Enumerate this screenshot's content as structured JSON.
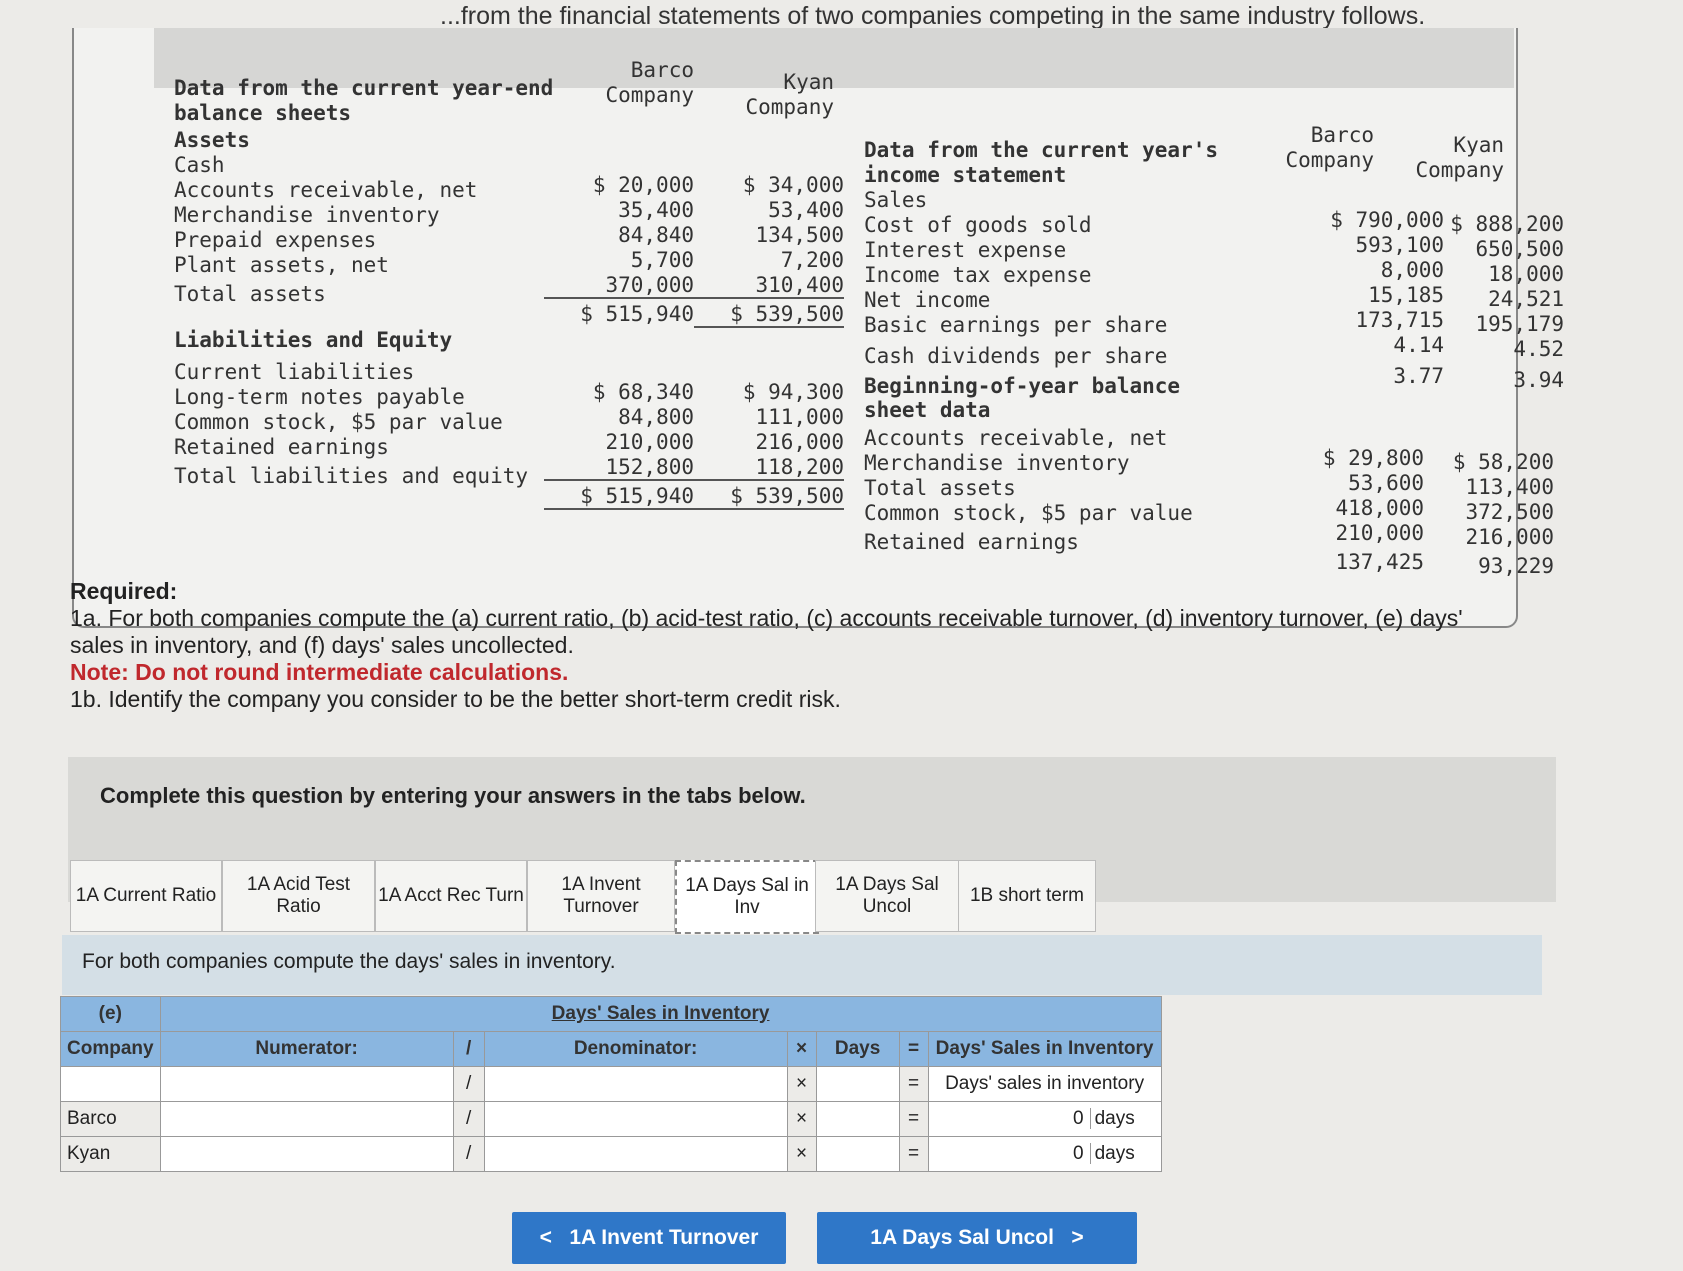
{
  "intro": "...from the financial statements of two companies competing in the same industry follows.",
  "balance": {
    "title": "Data from the current year-end balance sheets",
    "col_barco": "Barco Company",
    "col_kyan": "Kyan Company",
    "assets_label": "Assets",
    "assets": [
      {
        "label": "Cash",
        "barco": "$ 20,000",
        "kyan": "$ 34,000"
      },
      {
        "label": "Accounts receivable, net",
        "barco": "35,400",
        "kyan": "53,400"
      },
      {
        "label": "Merchandise inventory",
        "barco": "84,840",
        "kyan": "134,500"
      },
      {
        "label": "Prepaid expenses",
        "barco": "5,700",
        "kyan": "7,200"
      },
      {
        "label": "Plant assets, net",
        "barco": "370,000",
        "kyan": "310,400"
      },
      {
        "label": "Total assets",
        "barco": "$ 515,940",
        "kyan": "$ 539,500"
      }
    ],
    "liab_label": "Liabilities and Equity",
    "liabilities": [
      {
        "label": "Current liabilities",
        "barco": "$ 68,340",
        "kyan": "$ 94,300"
      },
      {
        "label": "Long-term notes payable",
        "barco": "84,800",
        "kyan": "111,000"
      },
      {
        "label": "Common stock, $5 par value",
        "barco": "210,000",
        "kyan": "216,000"
      },
      {
        "label": "Retained earnings",
        "barco": "152,800",
        "kyan": "118,200"
      },
      {
        "label": "Total liabilities and equity",
        "barco": "$ 515,940",
        "kyan": "$ 539,500"
      }
    ]
  },
  "income": {
    "title": "Data from the current year's income statement",
    "col_barco": "Barco Company",
    "col_kyan": "Kyan Company",
    "items": [
      {
        "label": "Sales",
        "barco": "$ 790,000",
        "kyan": "$ 888,200"
      },
      {
        "label": "Cost of goods sold",
        "barco": "593,100",
        "kyan": "650,500"
      },
      {
        "label": "Interest expense",
        "barco": "8,000",
        "kyan": "18,000"
      },
      {
        "label": "Income tax expense",
        "barco": "15,185",
        "kyan": "24,521"
      },
      {
        "label": "Net income",
        "barco": "173,715",
        "kyan": "195,179"
      },
      {
        "label": "Basic earnings per share",
        "barco": "4.14",
        "kyan": "4.52"
      },
      {
        "label": "Cash dividends per share",
        "barco": "3.77",
        "kyan": "3.94"
      }
    ],
    "beg_title": "Beginning-of-year balance sheet data",
    "beg_items": [
      {
        "label": "Accounts receivable, net",
        "barco": "$ 29,800",
        "kyan": "$ 58,200"
      },
      {
        "label": "Merchandise inventory",
        "barco": "53,600",
        "kyan": "113,400"
      },
      {
        "label": "Total assets",
        "barco": "418,000",
        "kyan": "372,500"
      },
      {
        "label": "Common stock, $5 par value",
        "barco": "210,000",
        "kyan": "216,000"
      },
      {
        "label": "Retained earnings",
        "barco": "137,425",
        "kyan": "93,229"
      }
    ]
  },
  "required": {
    "heading": "Required:",
    "q1a": "1a. For both companies compute the (a) current ratio, (b) acid-test ratio, (c) accounts receivable turnover, (d) inventory turnover, (e) days' sales in inventory, and (f) days' sales uncollected.",
    "note": "Note: Do not round intermediate calculations.",
    "q1b": "1b. Identify the company you consider to be the better short-term credit risk."
  },
  "panel_title": "Complete this question by entering your answers in the tabs below.",
  "tabs": [
    "1A Current Ratio",
    "1A Acid Test Ratio",
    "1A Acct Rec Turn",
    "1A Invent Turnover",
    "1A Days Sal in Inv",
    "1A Days Sal Uncol",
    "1B short term"
  ],
  "active_tab": "1A Days Sal in Inv",
  "instruction": "For both companies compute the days' sales in inventory.",
  "calc": {
    "part": "(e)",
    "company_header": "Company",
    "title": "Days' Sales in Inventory",
    "numerator": "Numerator:",
    "slash": "/",
    "denominator": "Denominator:",
    "times": "×",
    "days": "Days",
    "equals": "=",
    "result_header": "Days' Sales in Inventory",
    "result_sub": "Days' sales in inventory",
    "rows": [
      {
        "company": "Barco",
        "value": "0",
        "unit": "days"
      },
      {
        "company": "Kyan",
        "value": "0",
        "unit": "days"
      }
    ]
  },
  "nav": {
    "prev": "1A Invent Turnover",
    "next": "1A Days Sal Uncol"
  },
  "colors": {
    "header_blue": "#8ab6e0",
    "button_blue": "#2f77c8",
    "note_red": "#c0282d"
  }
}
